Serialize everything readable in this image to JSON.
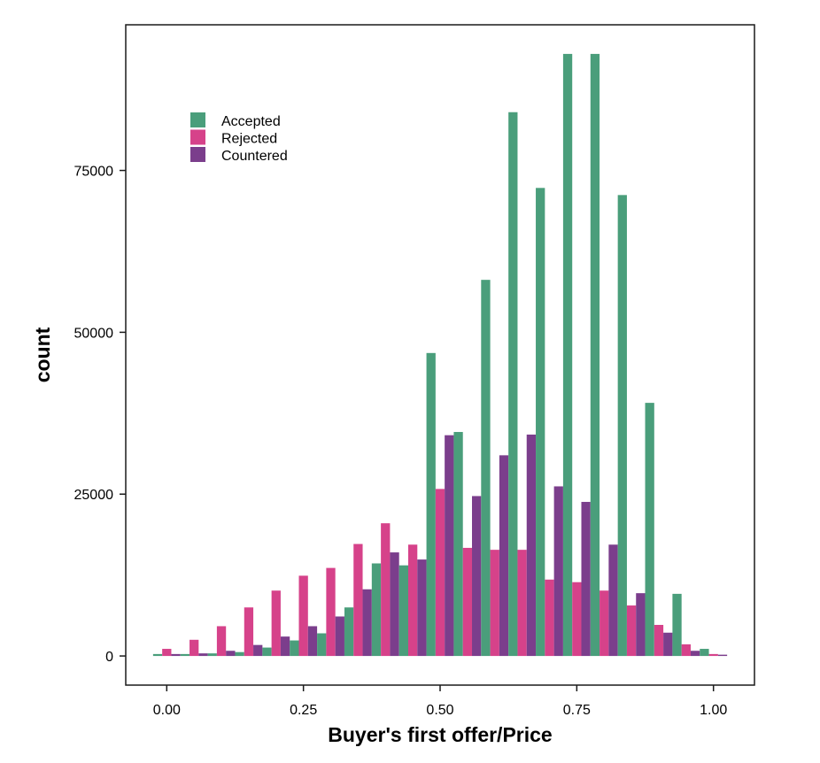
{
  "chart_data": {
    "type": "bar",
    "xlabel": "Buyer's first offer/Price",
    "ylabel": "count",
    "xlim": [
      -0.075,
      1.075
    ],
    "ylim": [
      -4500,
      97500
    ],
    "x_ticks": [
      0.0,
      0.25,
      0.5,
      0.75,
      1.0
    ],
    "x_tick_labels": [
      "0.00",
      "0.25",
      "0.50",
      "0.75",
      "1.00"
    ],
    "y_ticks": [
      0,
      25000,
      50000,
      75000
    ],
    "y_tick_labels": [
      "0",
      "25000",
      "50000",
      "75000"
    ],
    "grid": false,
    "legend_position": "top-left",
    "bin_width": 0.05,
    "bins": [
      0.0,
      0.05,
      0.1,
      0.15,
      0.2,
      0.25,
      0.3,
      0.35,
      0.4,
      0.45,
      0.5,
      0.55,
      0.6,
      0.65,
      0.7,
      0.75,
      0.8,
      0.85,
      0.9,
      0.95,
      1.0
    ],
    "series": [
      {
        "name": "Accepted",
        "color": "#4a9e7b",
        "values": [
          300,
          300,
          400,
          600,
          1300,
          2400,
          3500,
          7500,
          14300,
          14000,
          46800,
          34600,
          58100,
          84000,
          72300,
          93000,
          93000,
          71200,
          39100,
          9600,
          1100
        ]
      },
      {
        "name": "Rejected",
        "color": "#d6428a",
        "values": [
          1100,
          2500,
          4600,
          7500,
          10100,
          12400,
          13600,
          17300,
          20500,
          17200,
          25800,
          16700,
          16400,
          16400,
          11800,
          11400,
          10100,
          7800,
          4800,
          1800,
          300
        ]
      },
      {
        "name": "Countered",
        "color": "#7b3e8c",
        "values": [
          300,
          400,
          800,
          1700,
          3000,
          4600,
          6100,
          10300,
          16000,
          14900,
          34100,
          24700,
          31000,
          34200,
          26200,
          23800,
          17200,
          9700,
          3600,
          800,
          200
        ]
      }
    ]
  }
}
